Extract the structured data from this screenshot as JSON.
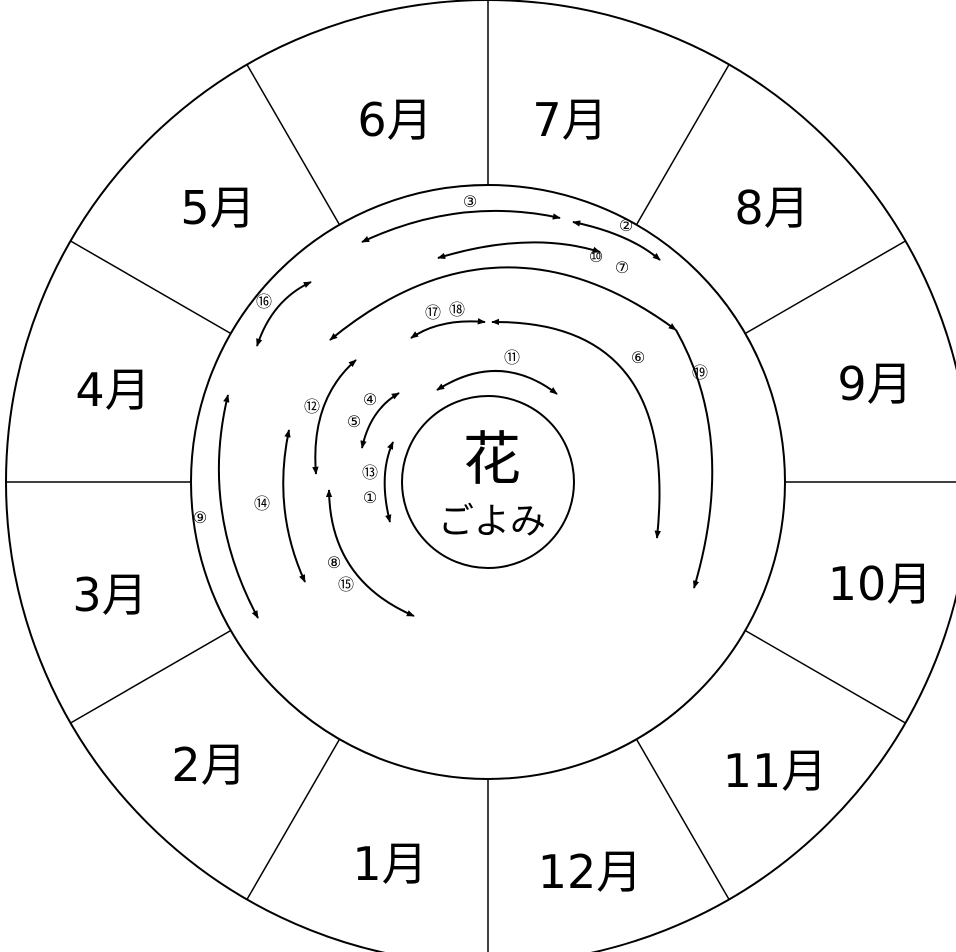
{
  "center": {
    "title": "花",
    "subtitle": "ごよみ"
  },
  "months": [
    "1月",
    "2月",
    "3月",
    "4月",
    "5月",
    "6月",
    "7月",
    "8月",
    "9月",
    "10月",
    "11月",
    "12月"
  ],
  "markers": [
    "①",
    "②",
    "③",
    "④",
    "⑤",
    "⑥",
    "⑦",
    "⑧",
    "⑨",
    "⑩",
    "⑪",
    "⑫",
    "⑬",
    "⑭",
    "⑮",
    "⑯",
    "⑰",
    "⑱",
    "⑲"
  ]
}
